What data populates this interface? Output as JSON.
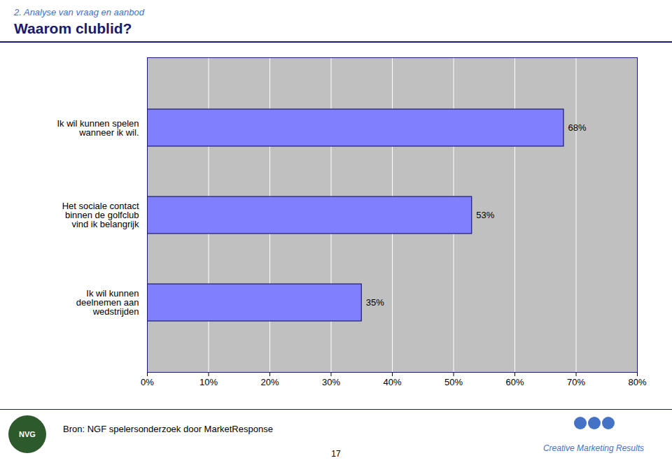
{
  "chart_data": {
    "type": "bar",
    "orientation": "horizontal",
    "subtitle": "2. Analyse van vraag en aanbod",
    "title": "Waarom clublid?",
    "categories": [
      "Ik wil kunnen\ndeelnemen aan\nwedstrijden",
      "Het sociale contact\nbinnen de golfclub\nvind ik belangrijk",
      "Ik wil kunnen spelen\nwanneer ik wil."
    ],
    "values": [
      35,
      53,
      68
    ],
    "value_labels": [
      "35%",
      "53%",
      "68%"
    ],
    "data_labels": true,
    "color": "#8080FF",
    "xlim": [
      0,
      80
    ],
    "xticks": [
      {
        "value": 0,
        "label": "0%"
      },
      {
        "value": 10,
        "label": "10%"
      },
      {
        "value": 20,
        "label": "20%"
      },
      {
        "value": 30,
        "label": "30%"
      },
      {
        "value": 40,
        "label": "40%"
      },
      {
        "value": 50,
        "label": "50%"
      },
      {
        "value": 60,
        "label": "60%"
      },
      {
        "value": 70,
        "label": "70%"
      },
      {
        "value": 80,
        "label": "80%"
      }
    ],
    "grid": true,
    "annotations": [
      "NVG",
      "Bron: NGF spelersonderzoek door MarketResponse",
      "17",
      "Creative Marketing Results"
    ]
  }
}
